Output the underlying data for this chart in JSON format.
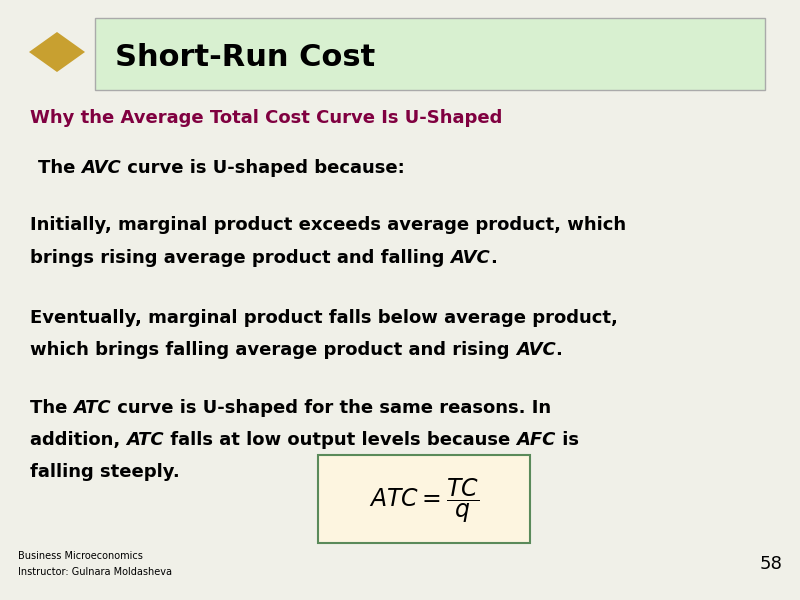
{
  "background_color": "#f0f0e8",
  "title_box_color": "#d8f0d0",
  "title_box_border": "#aaaaaa",
  "title_text": "Short-Run Cost",
  "title_color": "#000000",
  "subtitle_color": "#800040",
  "subtitle_text": "Why the Average Total Cost Curve Is U-Shaped",
  "body_color": "#000000",
  "formula_box_bg": "#fdf5e0",
  "formula_box_border": "#5a8a5a",
  "footer_text_1": "Business Microeconomics",
  "footer_text_2": "Instructor: Gulnara Moldasheva",
  "page_number": "58",
  "arrow_color": "#c8a030",
  "title_fontsize": 22,
  "subtitle_fontsize": 13,
  "body_fontsize": 13,
  "footer_fontsize": 7,
  "page_fontsize": 13
}
